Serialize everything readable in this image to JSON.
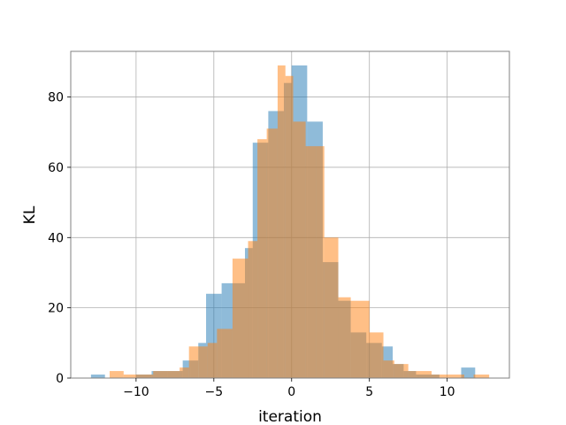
{
  "chart_data": {
    "type": "bar",
    "title": "",
    "xlabel": "iteration",
    "ylabel": "KL",
    "xlim": [
      -14.2,
      14.0
    ],
    "ylim": [
      0,
      93
    ],
    "grid": true,
    "xticks": [
      -10,
      -5,
      0,
      5,
      10
    ],
    "yticks": [
      0,
      20,
      40,
      60,
      80
    ],
    "series": [
      {
        "color": "#1f77b4",
        "opacity": 0.5,
        "bins": [
          {
            "x0": -12.9,
            "x1": -12.0,
            "y": 1
          },
          {
            "x0": -10.0,
            "x1": -9.0,
            "y": 1
          },
          {
            "x0": -9.0,
            "x1": -8.0,
            "y": 2
          },
          {
            "x0": -8.0,
            "x1": -7.0,
            "y": 2
          },
          {
            "x0": -7.0,
            "x1": -6.5,
            "y": 5
          },
          {
            "x0": -6.5,
            "x1": -6.0,
            "y": 5
          },
          {
            "x0": -6.0,
            "x1": -5.5,
            "y": 10
          },
          {
            "x0": -5.5,
            "x1": -4.5,
            "y": 24
          },
          {
            "x0": -4.5,
            "x1": -3.0,
            "y": 27
          },
          {
            "x0": -3.0,
            "x1": -2.5,
            "y": 37
          },
          {
            "x0": -2.5,
            "x1": -1.5,
            "y": 67
          },
          {
            "x0": -1.5,
            "x1": -0.5,
            "y": 76
          },
          {
            "x0": -0.5,
            "x1": 0.0,
            "y": 84
          },
          {
            "x0": 0.0,
            "x1": 1.0,
            "y": 89
          },
          {
            "x0": 1.0,
            "x1": 2.0,
            "y": 73
          },
          {
            "x0": 2.0,
            "x1": 3.0,
            "y": 33
          },
          {
            "x0": 3.0,
            "x1": 3.8,
            "y": 22
          },
          {
            "x0": 3.8,
            "x1": 4.8,
            "y": 13
          },
          {
            "x0": 4.8,
            "x1": 5.8,
            "y": 10
          },
          {
            "x0": 5.8,
            "x1": 6.5,
            "y": 9
          },
          {
            "x0": 6.5,
            "x1": 7.2,
            "y": 4
          },
          {
            "x0": 7.2,
            "x1": 8.0,
            "y": 2
          },
          {
            "x0": 8.0,
            "x1": 9.5,
            "y": 1
          },
          {
            "x0": 10.9,
            "x1": 11.8,
            "y": 3
          }
        ]
      },
      {
        "color": "#ff7f0e",
        "opacity": 0.5,
        "bins": [
          {
            "x0": -11.7,
            "x1": -10.8,
            "y": 2
          },
          {
            "x0": -10.8,
            "x1": -8.9,
            "y": 1
          },
          {
            "x0": -8.9,
            "x1": -7.2,
            "y": 2
          },
          {
            "x0": -7.2,
            "x1": -6.6,
            "y": 3
          },
          {
            "x0": -6.6,
            "x1": -6.0,
            "y": 9
          },
          {
            "x0": -6.0,
            "x1": -5.4,
            "y": 9
          },
          {
            "x0": -5.4,
            "x1": -4.8,
            "y": 10
          },
          {
            "x0": -4.8,
            "x1": -3.8,
            "y": 14
          },
          {
            "x0": -3.8,
            "x1": -2.8,
            "y": 34
          },
          {
            "x0": -2.8,
            "x1": -2.2,
            "y": 39
          },
          {
            "x0": -2.2,
            "x1": -1.6,
            "y": 68
          },
          {
            "x0": -1.6,
            "x1": -0.9,
            "y": 71
          },
          {
            "x0": -0.9,
            "x1": -0.4,
            "y": 89
          },
          {
            "x0": -0.4,
            "x1": 0.1,
            "y": 86
          },
          {
            "x0": 0.1,
            "x1": 0.9,
            "y": 73
          },
          {
            "x0": 0.9,
            "x1": 1.6,
            "y": 66
          },
          {
            "x0": 1.6,
            "x1": 2.1,
            "y": 66
          },
          {
            "x0": 2.1,
            "x1": 3.0,
            "y": 40
          },
          {
            "x0": 3.0,
            "x1": 3.8,
            "y": 23
          },
          {
            "x0": 3.8,
            "x1": 5.0,
            "y": 22
          },
          {
            "x0": 5.0,
            "x1": 5.9,
            "y": 13
          },
          {
            "x0": 5.9,
            "x1": 6.6,
            "y": 5
          },
          {
            "x0": 6.6,
            "x1": 7.5,
            "y": 4
          },
          {
            "x0": 7.5,
            "x1": 8.2,
            "y": 2
          },
          {
            "x0": 8.2,
            "x1": 9.0,
            "y": 2
          },
          {
            "x0": 9.0,
            "x1": 10.0,
            "y": 1
          },
          {
            "x0": 10.0,
            "x1": 11.1,
            "y": 1
          },
          {
            "x0": 11.7,
            "x1": 12.7,
            "y": 1
          }
        ]
      }
    ]
  }
}
